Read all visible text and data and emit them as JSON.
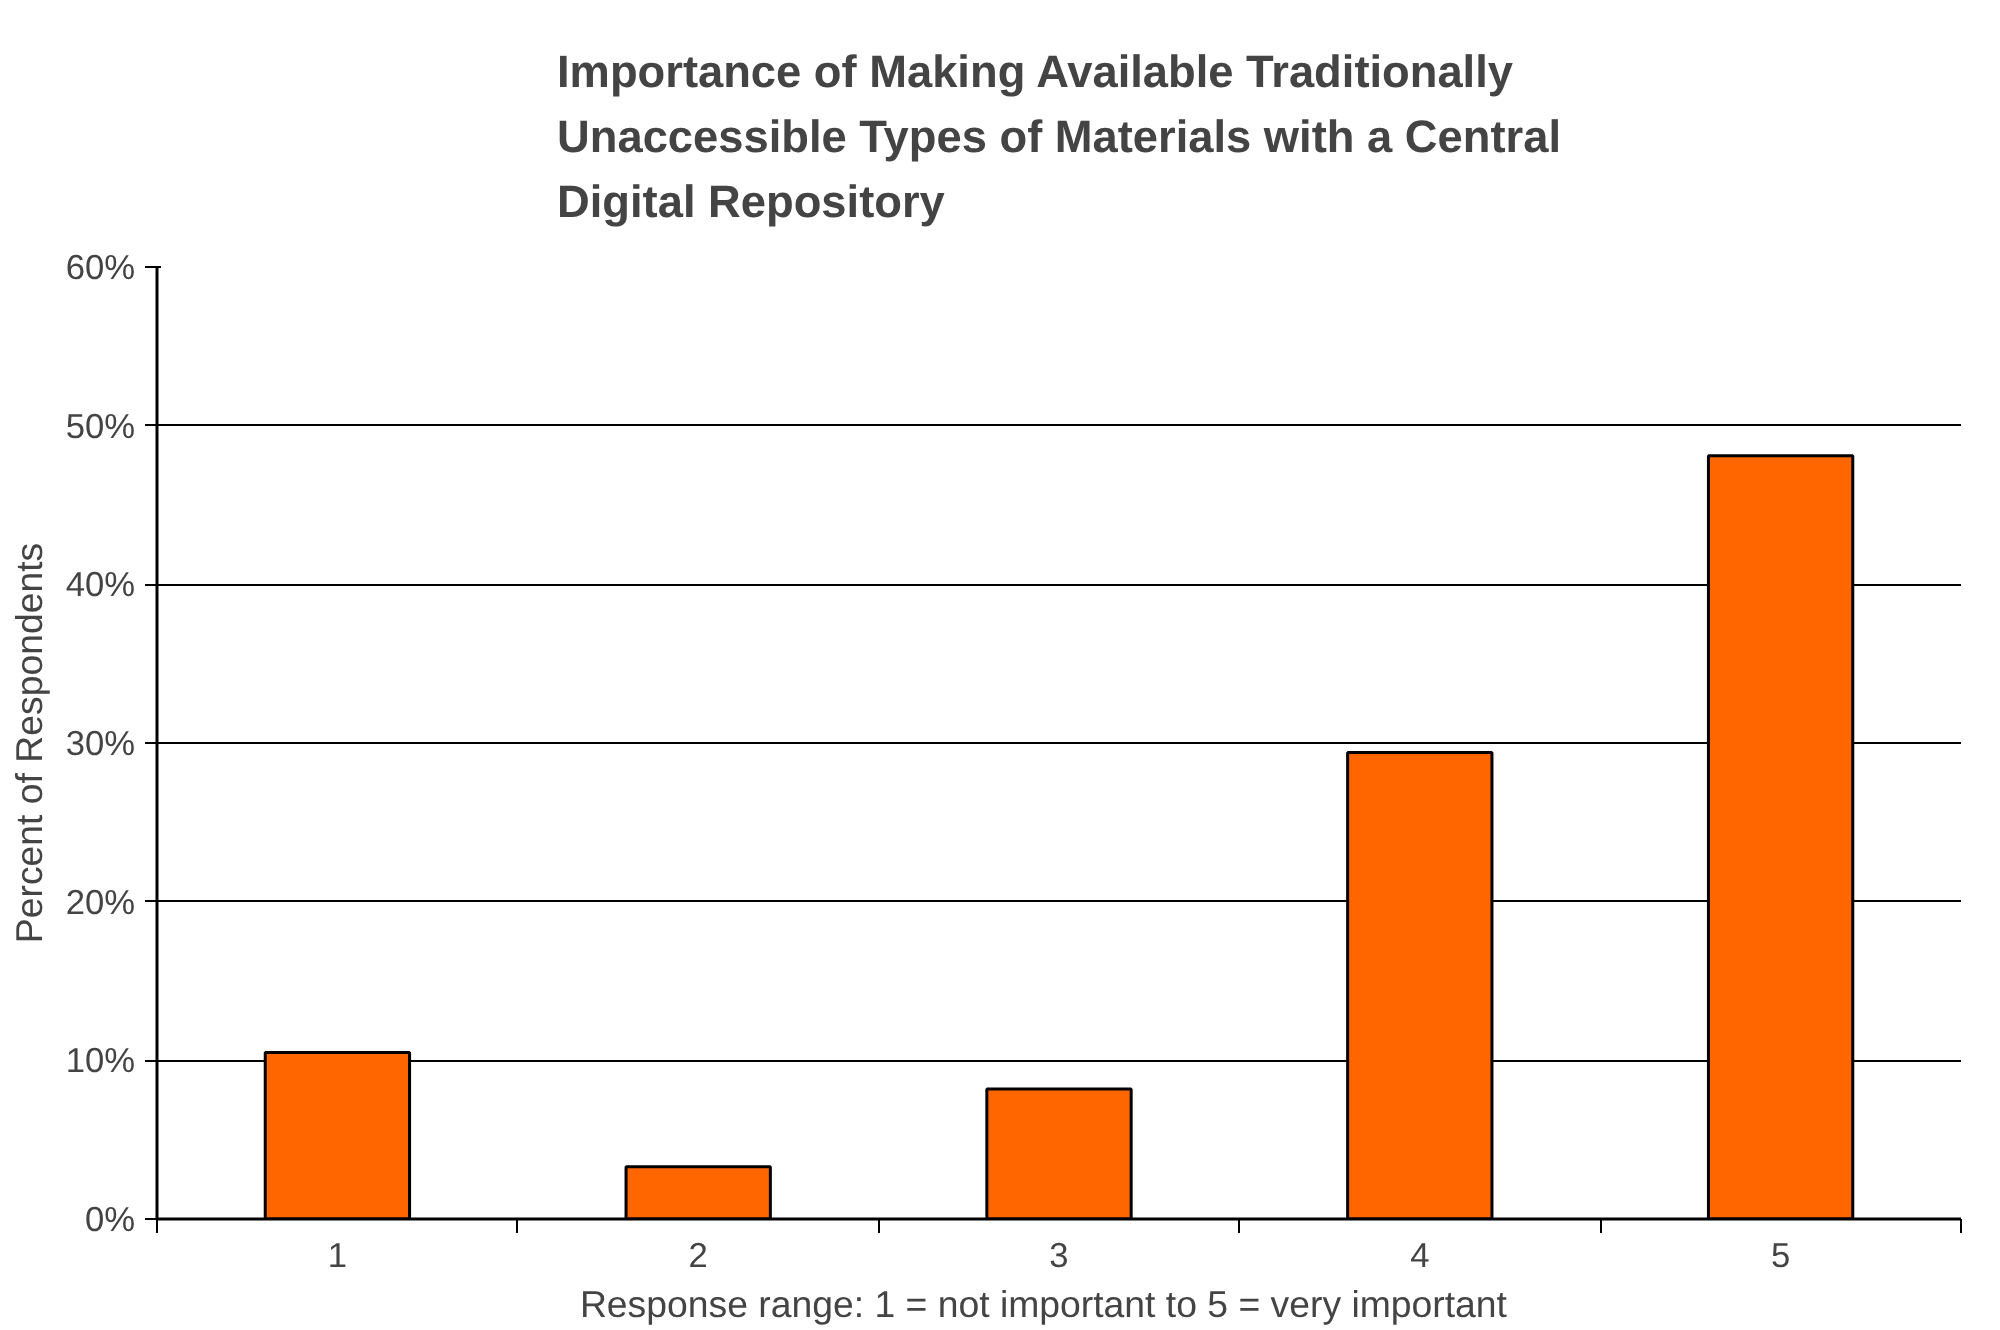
{
  "chart_data": {
    "type": "bar",
    "title": "Importance of Making Available Traditionally Unaccessible Types of Materials with a Central Digital Repository",
    "xlabel": "Response range:  1 = not important  to  5 = very important",
    "ylabel": "Percent of Respondents",
    "categories": [
      "1",
      "2",
      "3",
      "4",
      "5"
    ],
    "values": [
      10.5,
      3.3,
      8.2,
      29.4,
      48.1
    ],
    "color": "#ff6600",
    "ylim": [
      0,
      60
    ],
    "yticks": [
      {
        "value": 0,
        "label": "0%"
      },
      {
        "value": 10,
        "label": "10%"
      },
      {
        "value": 20,
        "label": "20%"
      },
      {
        "value": 30,
        "label": "30%"
      },
      {
        "value": 40,
        "label": "40%"
      },
      {
        "value": 50,
        "label": "50%"
      },
      {
        "value": 60,
        "label": "60%"
      }
    ],
    "grid": "y"
  }
}
